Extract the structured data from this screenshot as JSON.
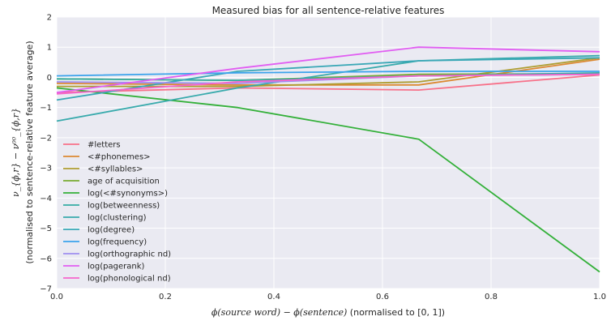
{
  "chart_data": {
    "type": "line",
    "title": "Measured bias for all sentence-relative features",
    "xlabel_prefix": "ϕ(source word) − ϕ(sentence)",
    "xlabel_suffix": " (normalised to [0, 1])",
    "ylabel_line1": "ν_{ϕ,r} − ν⁰⁰_{ϕ,r}",
    "ylabel_line2": "(normalised to sentence-relative feature average)",
    "xlim": [
      0.0,
      1.0
    ],
    "ylim": [
      -7,
      2
    ],
    "xticks": [
      "0.0",
      "0.2",
      "0.4",
      "0.6",
      "0.8",
      "1.0"
    ],
    "yticks": [
      "−7",
      "−6",
      "−5",
      "−4",
      "−3",
      "−2",
      "−1",
      "0",
      "1",
      "2"
    ],
    "grid": true,
    "legend_position": "lower-left",
    "x": [
      0.0,
      0.3333,
      0.6667,
      1.0
    ],
    "series": [
      {
        "name": "#letters",
        "color": "#f77189",
        "values": [
          -0.5,
          -0.35,
          -0.42,
          0.08
        ]
      },
      {
        "name": "<#phonemes>",
        "color": "#dc8932",
        "values": [
          -0.2,
          -0.25,
          -0.25,
          0.6
        ]
      },
      {
        "name": "<#syllables>",
        "color": "#ae9d31",
        "values": [
          -0.3,
          -0.3,
          -0.15,
          0.65
        ]
      },
      {
        "name": "age of acquisition",
        "color": "#77ab31",
        "values": [
          -0.05,
          -0.1,
          0.1,
          0.12
        ]
      },
      {
        "name": "log(<#synonyms>)",
        "color": "#33b039",
        "values": [
          -0.35,
          -1.0,
          -2.05,
          -6.45
        ]
      },
      {
        "name": "log(betweenness)",
        "color": "#36ada4",
        "values": [
          -0.05,
          -0.1,
          0.05,
          0.15
        ]
      },
      {
        "name": "log(clustering)",
        "color": "#38aaac",
        "values": [
          -1.45,
          -0.35,
          0.55,
          0.72
        ]
      },
      {
        "name": "log(degree)",
        "color": "#39a7b6",
        "values": [
          -0.75,
          0.2,
          0.55,
          0.65
        ]
      },
      {
        "name": "log(frequency)",
        "color": "#3ba3ec",
        "values": [
          0.05,
          0.15,
          0.2,
          0.2
        ]
      },
      {
        "name": "log(orthographic nd)",
        "color": "#9f8ff0",
        "values": [
          -0.15,
          -0.2,
          0.05,
          0.1
        ]
      },
      {
        "name": "log(pagerank)",
        "color": "#e15ef2",
        "values": [
          -0.5,
          0.3,
          1.0,
          0.85
        ]
      },
      {
        "name": "log(phonological nd)",
        "color": "#f565cc",
        "values": [
          -0.55,
          -0.15,
          0.05,
          0.1
        ]
      }
    ]
  }
}
